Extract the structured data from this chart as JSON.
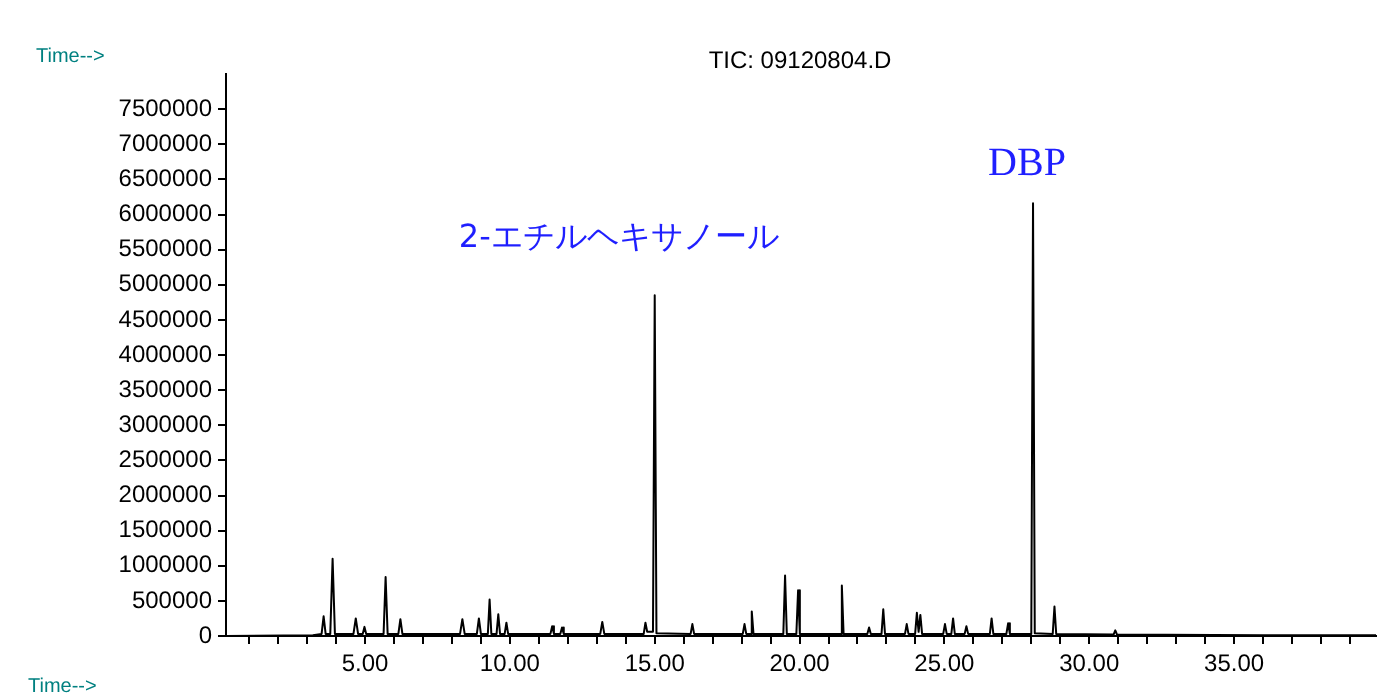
{
  "chart_data": {
    "type": "line",
    "title": "TIC: 09120804.D",
    "ylabel": "Time-->",
    "xlabel": "Time-->",
    "x": [
      0.2,
      3.2,
      3.5,
      3.57,
      3.64,
      3.8,
      3.88,
      3.96,
      4.6,
      4.68,
      4.76,
      4.92,
      4.98,
      5.04,
      5.64,
      5.71,
      5.78,
      6.15,
      6.22,
      6.29,
      8.28,
      8.36,
      8.44,
      8.86,
      8.93,
      9.0,
      9.24,
      9.3,
      9.36,
      9.54,
      9.6,
      9.66,
      9.82,
      9.88,
      9.94,
      11.4,
      11.46,
      11.52,
      11.74,
      11.8,
      11.86,
      13.12,
      13.19,
      13.26,
      14.62,
      14.68,
      14.74,
      14.94,
      15.0,
      15.06,
      16.24,
      16.3,
      16.36,
      18.04,
      18.1,
      18.16,
      18.29,
      18.35,
      18.41,
      19.44,
      19.5,
      19.56,
      19.89,
      19.95,
      20.01,
      21.4,
      21.46,
      21.52,
      22.34,
      22.4,
      22.46,
      22.83,
      22.89,
      22.95,
      23.64,
      23.7,
      23.76,
      23.99,
      24.05,
      24.11,
      24.17,
      24.23,
      24.96,
      25.02,
      25.08,
      25.24,
      25.3,
      25.36,
      25.7,
      25.76,
      25.82,
      26.57,
      26.63,
      26.69,
      27.14,
      27.2,
      27.26,
      28.0,
      28.06,
      28.12,
      28.74,
      28.8,
      28.86,
      30.84,
      30.9,
      30.96,
      36.0,
      39.9
    ],
    "series": [
      {
        "color": "#000000",
        "values": [
          0,
          10000,
          30000,
          280000,
          30000,
          30000,
          1100000,
          30000,
          30000,
          250000,
          30000,
          30000,
          130000,
          30000,
          30000,
          840000,
          30000,
          30000,
          240000,
          30000,
          30000,
          240000,
          30000,
          30000,
          250000,
          30000,
          30000,
          520000,
          30000,
          30000,
          310000,
          30000,
          30000,
          190000,
          30000,
          30000,
          140000,
          30000,
          30000,
          120000,
          30000,
          30000,
          200000,
          30000,
          30000,
          190000,
          60000,
          60000,
          4850000,
          40000,
          30000,
          170000,
          30000,
          30000,
          170000,
          30000,
          30000,
          350000,
          30000,
          30000,
          860000,
          30000,
          30000,
          650000,
          30000,
          30000,
          720000,
          30000,
          30000,
          120000,
          30000,
          30000,
          380000,
          30000,
          30000,
          170000,
          30000,
          30000,
          330000,
          60000,
          300000,
          30000,
          30000,
          170000,
          30000,
          30000,
          250000,
          30000,
          30000,
          140000,
          30000,
          30000,
          250000,
          30000,
          30000,
          180000,
          30000,
          30000,
          6160000,
          40000,
          30000,
          420000,
          30000,
          20000,
          80000,
          20000,
          10000,
          10000
        ]
      }
    ],
    "xlim": [
      0.2,
      39.9
    ],
    "xticks": [
      {
        "value": 1,
        "label": null
      },
      {
        "value": 2,
        "label": null
      },
      {
        "value": 3,
        "label": null
      },
      {
        "value": 4,
        "label": null
      },
      {
        "value": 5,
        "label": "5.00"
      },
      {
        "value": 6,
        "label": null
      },
      {
        "value": 7,
        "label": null
      },
      {
        "value": 8,
        "label": null
      },
      {
        "value": 9,
        "label": null
      },
      {
        "value": 10,
        "label": "10.00"
      },
      {
        "value": 11,
        "label": null
      },
      {
        "value": 12,
        "label": null
      },
      {
        "value": 13,
        "label": null
      },
      {
        "value": 14,
        "label": null
      },
      {
        "value": 15,
        "label": "15.00"
      },
      {
        "value": 16,
        "label": null
      },
      {
        "value": 17,
        "label": null
      },
      {
        "value": 18,
        "label": null
      },
      {
        "value": 19,
        "label": null
      },
      {
        "value": 20,
        "label": "20.00"
      },
      {
        "value": 21,
        "label": null
      },
      {
        "value": 22,
        "label": null
      },
      {
        "value": 23,
        "label": null
      },
      {
        "value": 24,
        "label": null
      },
      {
        "value": 25,
        "label": "25.00"
      },
      {
        "value": 26,
        "label": null
      },
      {
        "value": 27,
        "label": null
      },
      {
        "value": 28,
        "label": null
      },
      {
        "value": 29,
        "label": null
      },
      {
        "value": 30,
        "label": "30.00"
      },
      {
        "value": 31,
        "label": null
      },
      {
        "value": 32,
        "label": null
      },
      {
        "value": 33,
        "label": null
      },
      {
        "value": 34,
        "label": null
      },
      {
        "value": 35,
        "label": "35.00"
      },
      {
        "value": 36,
        "label": null
      },
      {
        "value": 37,
        "label": null
      },
      {
        "value": 38,
        "label": null
      },
      {
        "value": 39,
        "label": null
      }
    ],
    "ylim": [
      0,
      8000000
    ],
    "yticks": [
      0,
      500000,
      1000000,
      1500000,
      2000000,
      2500000,
      3000000,
      3500000,
      4000000,
      4500000,
      5000000,
      5500000,
      6000000,
      6500000,
      7000000,
      7500000
    ],
    "annotations": [
      {
        "text": "2-エチルヘキサノール",
        "x": 15.0,
        "y": 4850000
      },
      {
        "text": "DBP",
        "x": 28.06,
        "y": 6160000
      }
    ],
    "grid": false,
    "legend": false,
    "marker": "none",
    "line_style": "solid"
  }
}
